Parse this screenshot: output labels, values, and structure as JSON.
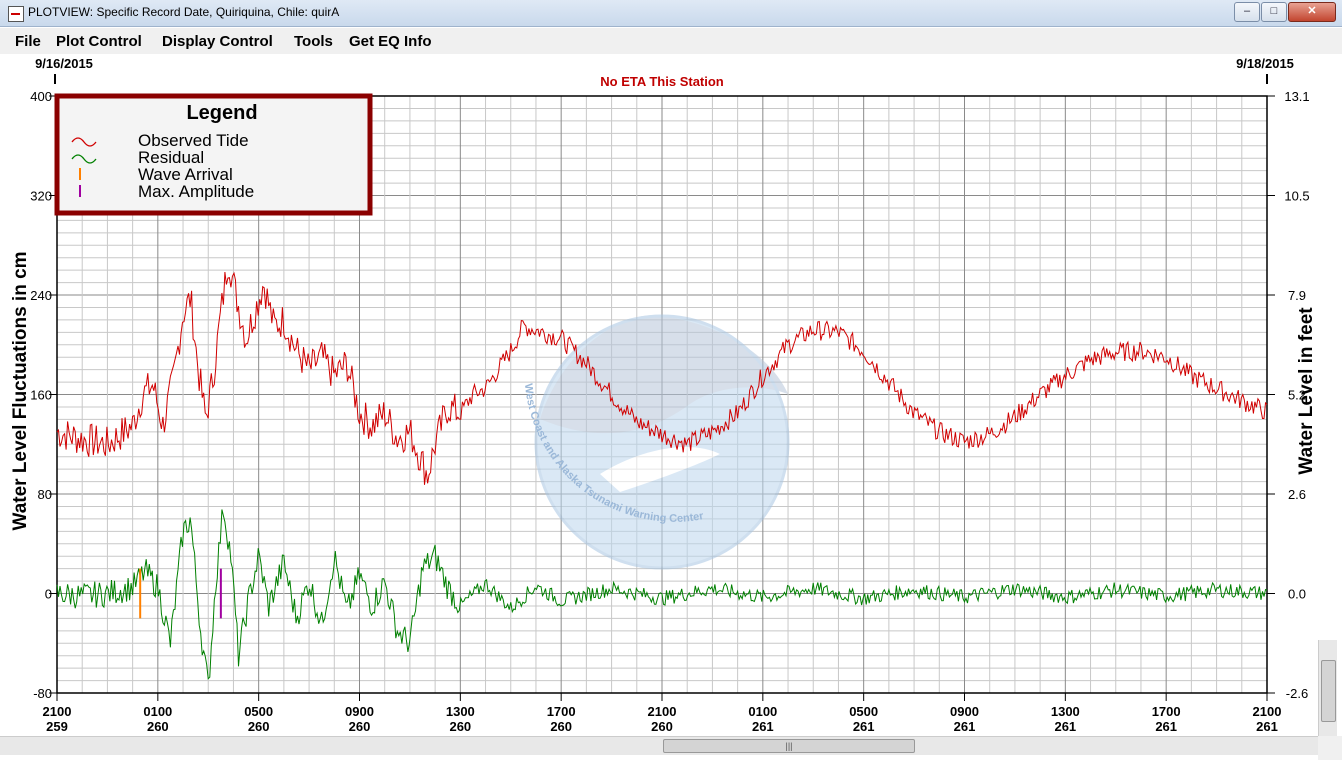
{
  "window": {
    "title": "PLOTVIEW: Specific Record Date, Quiriquina, Chile: quirA",
    "min_label": "–",
    "max_label": "□",
    "close_label": "✕"
  },
  "menu": {
    "file": "File",
    "plot_control": "Plot Control",
    "display_control": "Display Control",
    "tools": "Tools",
    "get_eq_info": "Get EQ Info"
  },
  "header": {
    "start_date": "9/16/2015",
    "end_date": "9/18/2015",
    "eta": "No ETA This Station"
  },
  "legend": {
    "title": "Legend",
    "entries": [
      {
        "label": "Observed Tide",
        "color": "#d00000",
        "symbol": "wave"
      },
      {
        "label": "Residual",
        "color": "#008000",
        "symbol": "wave"
      },
      {
        "label": "Wave Arrival",
        "color": "#ff8000",
        "symbol": "bar"
      },
      {
        "label": "Max. Amplitude",
        "color": "#a000a0",
        "symbol": "bar"
      }
    ]
  },
  "watermark": {
    "text": "West Coast and Alaska Tsunami Warning Center",
    "icon": "noaa-logo-icon"
  },
  "scrollbar": {
    "grip_label": "|||"
  },
  "chart_data": {
    "type": "line",
    "y_left": {
      "label": "Water Level Fluctuations in cm",
      "ticks": [
        "400",
        "320",
        "240",
        "160",
        "80",
        "0",
        "-80"
      ],
      "range": [
        -80,
        400
      ]
    },
    "y_right": {
      "label": "Water Level in feet",
      "ticks": [
        "13.1",
        "10.5",
        "7.9",
        "5.2",
        "2.6",
        "0.0",
        "-2.6"
      ],
      "range": [
        -2.6,
        13.1
      ]
    },
    "x_ticks": [
      {
        "time": "2100",
        "day": "259"
      },
      {
        "time": "0100",
        "day": "260"
      },
      {
        "time": "0500",
        "day": "260"
      },
      {
        "time": "0900",
        "day": "260"
      },
      {
        "time": "1300",
        "day": "260"
      },
      {
        "time": "1700",
        "day": "260"
      },
      {
        "time": "2100",
        "day": "260"
      },
      {
        "time": "0100",
        "day": "261"
      },
      {
        "time": "0500",
        "day": "261"
      },
      {
        "time": "0900",
        "day": "261"
      },
      {
        "time": "1300",
        "day": "261"
      },
      {
        "time": "1700",
        "day": "261"
      },
      {
        "time": "2100",
        "day": "261"
      }
    ],
    "x_range_hours": [
      0,
      48
    ],
    "wave_arrival_hour": 3.3,
    "max_amplitude_hour": 6.5,
    "series": [
      {
        "name": "Observed Tide",
        "color": "#d00000",
        "noise": 8,
        "points": [
          [
            0,
            130
          ],
          [
            1,
            124
          ],
          [
            2,
            120
          ],
          [
            3,
            135
          ],
          [
            3.4,
            160
          ],
          [
            3.8,
            168
          ],
          [
            4.2,
            135
          ],
          [
            4.6,
            170
          ],
          [
            5.0,
            225
          ],
          [
            5.3,
            238
          ],
          [
            5.6,
            180
          ],
          [
            5.9,
            140
          ],
          [
            6.2,
            175
          ],
          [
            6.5,
            225
          ],
          [
            6.8,
            270
          ],
          [
            7.1,
            240
          ],
          [
            7.5,
            205
          ],
          [
            7.9,
            230
          ],
          [
            8.2,
            250
          ],
          [
            8.6,
            215
          ],
          [
            9.0,
            220
          ],
          [
            9.5,
            195
          ],
          [
            10,
            180
          ],
          [
            10.5,
            190
          ],
          [
            11,
            175
          ],
          [
            11.5,
            185
          ],
          [
            12,
            145
          ],
          [
            12.5,
            135
          ],
          [
            13,
            145
          ],
          [
            13.5,
            125
          ],
          [
            14,
            130
          ],
          [
            14.4,
            110
          ],
          [
            14.7,
            95
          ],
          [
            15,
            120
          ],
          [
            15.5,
            150
          ],
          [
            16,
            145
          ],
          [
            16.5,
            160
          ],
          [
            17,
            165
          ],
          [
            17.5,
            180
          ],
          [
            18,
            195
          ],
          [
            18.5,
            215
          ],
          [
            19,
            212
          ],
          [
            20,
            205
          ],
          [
            21,
            185
          ],
          [
            22,
            160
          ],
          [
            23,
            138
          ],
          [
            24,
            128
          ],
          [
            25,
            120
          ],
          [
            26,
            130
          ],
          [
            27,
            145
          ],
          [
            28,
            175
          ],
          [
            29,
            200
          ],
          [
            30,
            212
          ],
          [
            31,
            210
          ],
          [
            32,
            195
          ],
          [
            33,
            170
          ],
          [
            34,
            145
          ],
          [
            35,
            130
          ],
          [
            36,
            122
          ],
          [
            37,
            128
          ],
          [
            38,
            142
          ],
          [
            39,
            160
          ],
          [
            40,
            175
          ],
          [
            41,
            188
          ],
          [
            42,
            194
          ],
          [
            43,
            195
          ],
          [
            44,
            190
          ],
          [
            45,
            175
          ],
          [
            46,
            165
          ],
          [
            47,
            155
          ],
          [
            48,
            146
          ]
        ]
      },
      {
        "name": "Residual",
        "color": "#008000",
        "noise": 6,
        "points": [
          [
            0,
            0
          ],
          [
            1,
            -2
          ],
          [
            2,
            0
          ],
          [
            3,
            5
          ],
          [
            3.5,
            18
          ],
          [
            4,
            5
          ],
          [
            4.5,
            -40
          ],
          [
            5,
            50
          ],
          [
            5.3,
            60
          ],
          [
            5.7,
            -30
          ],
          [
            6.0,
            -75
          ],
          [
            6.3,
            10
          ],
          [
            6.6,
            70
          ],
          [
            6.9,
            30
          ],
          [
            7.2,
            -50
          ],
          [
            7.6,
            -5
          ],
          [
            8,
            30
          ],
          [
            8.4,
            -10
          ],
          [
            9,
            25
          ],
          [
            9.5,
            -20
          ],
          [
            10,
            10
          ],
          [
            10.5,
            -25
          ],
          [
            11,
            30
          ],
          [
            11.5,
            -15
          ],
          [
            12,
            15
          ],
          [
            12.5,
            -10
          ],
          [
            13,
            10
          ],
          [
            13.5,
            -30
          ],
          [
            14,
            -40
          ],
          [
            14.5,
            20
          ],
          [
            15,
            30
          ],
          [
            15.5,
            5
          ],
          [
            16,
            -10
          ],
          [
            17,
            8
          ],
          [
            18,
            -12
          ],
          [
            19,
            6
          ],
          [
            20,
            -6
          ],
          [
            22,
            4
          ],
          [
            24,
            -4
          ],
          [
            26,
            4
          ],
          [
            28,
            -3
          ],
          [
            30,
            4
          ],
          [
            32,
            -4
          ],
          [
            34,
            3
          ],
          [
            36,
            -3
          ],
          [
            38,
            4
          ],
          [
            40,
            -3
          ],
          [
            42,
            3
          ],
          [
            44,
            -2
          ],
          [
            46,
            3
          ],
          [
            48,
            0
          ]
        ]
      }
    ],
    "grid": true
  }
}
